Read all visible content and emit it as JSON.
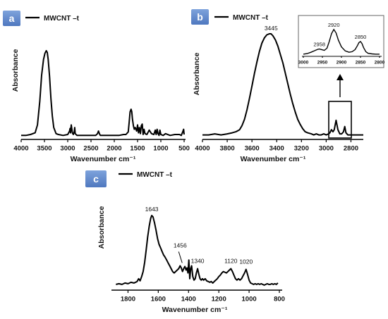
{
  "panels": {
    "a": {
      "letter": "a"
    },
    "b": {
      "letter": "b"
    },
    "c": {
      "letter": "c"
    }
  },
  "colors": {
    "line": "#000000",
    "panel_label": "#5b86c9"
  },
  "chart_data": [
    {
      "id": "a",
      "type": "line",
      "title": "",
      "xlabel": "Wavenumber cm⁻¹",
      "ylabel": "Absorbance",
      "xlim": [
        4000,
        500
      ],
      "ylim": [
        0,
        1
      ],
      "x_reversed": true,
      "x_ticks": [
        4000,
        3500,
        3000,
        2500,
        2000,
        1500,
        1000,
        500
      ],
      "legend": {
        "position": "top-left",
        "entries": [
          "MWCNT –t"
        ]
      },
      "series": [
        {
          "name": "MWCNT –t",
          "x": [
            4000,
            3900,
            3800,
            3700,
            3650,
            3600,
            3560,
            3520,
            3490,
            3460,
            3440,
            3420,
            3390,
            3360,
            3330,
            3300,
            3250,
            3200,
            3100,
            3000,
            2960,
            2950,
            2940,
            2925,
            2900,
            2880,
            2860,
            2850,
            2840,
            2800,
            2600,
            2400,
            2360,
            2340,
            2320,
            2300,
            2200,
            2000,
            1900,
            1800,
            1750,
            1700,
            1680,
            1660,
            1640,
            1625,
            1610,
            1590,
            1570,
            1550,
            1520,
            1500,
            1480,
            1460,
            1440,
            1420,
            1400,
            1380,
            1360,
            1340,
            1300,
            1250,
            1200,
            1150,
            1120,
            1100,
            1080,
            1060,
            1040,
            1020,
            1000,
            950,
            900,
            800,
            700,
            600,
            560,
            530,
            510,
            500
          ],
          "y": [
            0.03,
            0.03,
            0.04,
            0.06,
            0.15,
            0.42,
            0.72,
            0.9,
            0.97,
            1.0,
            0.98,
            0.9,
            0.7,
            0.45,
            0.25,
            0.12,
            0.05,
            0.04,
            0.03,
            0.04,
            0.08,
            0.11,
            0.06,
            0.15,
            0.06,
            0.04,
            0.07,
            0.12,
            0.05,
            0.03,
            0.03,
            0.03,
            0.05,
            0.08,
            0.05,
            0.03,
            0.03,
            0.03,
            0.03,
            0.04,
            0.04,
            0.07,
            0.18,
            0.3,
            0.33,
            0.3,
            0.22,
            0.14,
            0.1,
            0.12,
            0.08,
            0.15,
            0.06,
            0.12,
            0.05,
            0.14,
            0.16,
            0.04,
            0.1,
            0.05,
            0.04,
            0.09,
            0.05,
            0.04,
            0.09,
            0.04,
            0.1,
            0.05,
            0.03,
            0.09,
            0.04,
            0.03,
            0.05,
            0.03,
            0.04,
            0.04,
            0.03,
            0.07,
            0.1,
            0.04
          ]
        }
      ]
    },
    {
      "id": "b",
      "type": "line",
      "title": "",
      "xlabel": "Wavenumber cm⁻¹",
      "ylabel": "Absorbance",
      "xlim": [
        4000,
        2700
      ],
      "ylim": [
        0,
        1
      ],
      "x_reversed": true,
      "x_ticks": [
        4000,
        3800,
        3600,
        3400,
        3200,
        3000,
        2800
      ],
      "legend": {
        "position": "top-left",
        "entries": [
          "MWCNT –t"
        ]
      },
      "annotations": [
        {
          "x": 3445,
          "text": "3445"
        }
      ],
      "series": [
        {
          "name": "MWCNT –t",
          "x": [
            4000,
            3950,
            3900,
            3850,
            3800,
            3760,
            3730,
            3700,
            3680,
            3660,
            3640,
            3620,
            3600,
            3580,
            3560,
            3540,
            3520,
            3500,
            3480,
            3460,
            3445,
            3430,
            3410,
            3390,
            3370,
            3350,
            3330,
            3310,
            3290,
            3270,
            3250,
            3230,
            3210,
            3190,
            3170,
            3150,
            3120,
            3100,
            3080,
            3060,
            3040,
            3020,
            3000,
            2980,
            2970,
            2958,
            2945,
            2935,
            2920,
            2905,
            2890,
            2875,
            2860,
            2850,
            2840,
            2825,
            2800,
            2780,
            2760,
            2740,
            2720,
            2700
          ],
          "y": [
            0.03,
            0.03,
            0.04,
            0.03,
            0.04,
            0.05,
            0.06,
            0.08,
            0.12,
            0.18,
            0.27,
            0.38,
            0.5,
            0.62,
            0.73,
            0.83,
            0.91,
            0.96,
            0.99,
            1.0,
            1.0,
            0.98,
            0.94,
            0.88,
            0.8,
            0.72,
            0.62,
            0.52,
            0.42,
            0.33,
            0.25,
            0.18,
            0.13,
            0.09,
            0.06,
            0.05,
            0.04,
            0.03,
            0.04,
            0.03,
            0.03,
            0.04,
            0.03,
            0.04,
            0.05,
            0.08,
            0.06,
            0.08,
            0.17,
            0.08,
            0.04,
            0.04,
            0.06,
            0.11,
            0.05,
            0.03,
            0.03,
            0.03,
            0.03,
            0.03,
            0.03,
            0.03
          ]
        }
      ],
      "inset": {
        "xlim": [
          3000,
          2800
        ],
        "x_ticks": [
          3000,
          2950,
          2900,
          2850,
          2800
        ],
        "annotations": [
          {
            "x": 2958,
            "text": "2958"
          },
          {
            "x": 2920,
            "text": "2920"
          },
          {
            "x": 2850,
            "text": "2850"
          }
        ],
        "x": [
          3000,
          2990,
          2980,
          2970,
          2962,
          2958,
          2952,
          2945,
          2938,
          2932,
          2926,
          2920,
          2914,
          2908,
          2900,
          2890,
          2880,
          2872,
          2864,
          2858,
          2854,
          2850,
          2846,
          2842,
          2836,
          2830,
          2820,
          2810,
          2800
        ],
        "y": [
          0.03,
          0.05,
          0.1,
          0.16,
          0.21,
          0.22,
          0.2,
          0.17,
          0.25,
          0.5,
          0.8,
          0.95,
          0.82,
          0.55,
          0.3,
          0.15,
          0.1,
          0.12,
          0.2,
          0.35,
          0.46,
          0.5,
          0.42,
          0.28,
          0.12,
          0.06,
          0.04,
          0.03,
          0.03
        ]
      }
    },
    {
      "id": "c",
      "type": "line",
      "title": "",
      "xlabel": "Wavenumber cm⁻¹",
      "ylabel": "Absorbance",
      "xlim": [
        1900,
        800
      ],
      "ylim": [
        0,
        1
      ],
      "x_reversed": true,
      "x_ticks": [
        1800,
        1600,
        1400,
        1200,
        1000,
        800
      ],
      "legend": {
        "position": "top-left",
        "entries": [
          "MWCNT –t"
        ]
      },
      "annotations": [
        {
          "x": 1643,
          "text": "1643"
        },
        {
          "x": 1456,
          "text": "1456"
        },
        {
          "x": 1340,
          "text": "1340"
        },
        {
          "x": 1120,
          "text": "1120"
        },
        {
          "x": 1020,
          "text": "1020"
        }
      ],
      "series": [
        {
          "name": "MWCNT –t",
          "x": [
            1880,
            1860,
            1840,
            1820,
            1800,
            1780,
            1760,
            1740,
            1730,
            1720,
            1710,
            1700,
            1690,
            1680,
            1670,
            1660,
            1650,
            1643,
            1635,
            1625,
            1615,
            1605,
            1595,
            1585,
            1575,
            1565,
            1555,
            1545,
            1535,
            1525,
            1515,
            1505,
            1495,
            1485,
            1475,
            1465,
            1456,
            1448,
            1440,
            1432,
            1424,
            1416,
            1410,
            1404,
            1398,
            1392,
            1386,
            1380,
            1372,
            1364,
            1356,
            1348,
            1340,
            1332,
            1324,
            1316,
            1308,
            1300,
            1290,
            1280,
            1270,
            1260,
            1250,
            1240,
            1230,
            1220,
            1210,
            1200,
            1190,
            1180,
            1170,
            1160,
            1150,
            1140,
            1130,
            1120,
            1110,
            1100,
            1090,
            1080,
            1070,
            1060,
            1050,
            1040,
            1030,
            1020,
            1010,
            1000,
            990,
            980,
            970,
            960,
            950,
            940,
            930,
            920,
            910,
            900,
            890,
            880,
            870,
            860,
            850,
            840,
            830,
            820,
            810
          ],
          "y": [
            0.04,
            0.05,
            0.04,
            0.06,
            0.05,
            0.07,
            0.06,
            0.08,
            0.12,
            0.09,
            0.15,
            0.22,
            0.35,
            0.52,
            0.7,
            0.85,
            0.96,
            1.0,
            0.98,
            0.9,
            0.8,
            0.68,
            0.6,
            0.55,
            0.5,
            0.45,
            0.42,
            0.38,
            0.34,
            0.3,
            0.26,
            0.22,
            0.2,
            0.22,
            0.24,
            0.26,
            0.3,
            0.27,
            0.22,
            0.26,
            0.29,
            0.24,
            0.27,
            0.2,
            0.38,
            0.12,
            0.26,
            0.3,
            0.15,
            0.1,
            0.12,
            0.2,
            0.26,
            0.18,
            0.12,
            0.1,
            0.12,
            0.1,
            0.12,
            0.09,
            0.08,
            0.07,
            0.08,
            0.06,
            0.08,
            0.1,
            0.12,
            0.15,
            0.17,
            0.2,
            0.22,
            0.21,
            0.2,
            0.22,
            0.24,
            0.26,
            0.22,
            0.17,
            0.12,
            0.1,
            0.12,
            0.1,
            0.12,
            0.16,
            0.2,
            0.25,
            0.18,
            0.1,
            0.06,
            0.05,
            0.04,
            0.05,
            0.04,
            0.05,
            0.04,
            0.05,
            0.04,
            0.03,
            0.04,
            0.05,
            0.04,
            0.04,
            0.05,
            0.04,
            0.05,
            0.04,
            0.06
          ]
        }
      ]
    }
  ]
}
